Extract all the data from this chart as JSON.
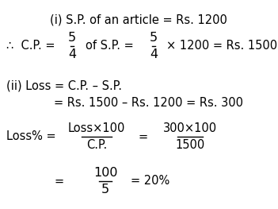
{
  "bg_color": "#ffffff",
  "figsize": [
    3.51,
    2.63
  ],
  "dpi": 100,
  "frac1_num": "5",
  "frac1_den": "4",
  "frac2_num": "5",
  "frac2_den": "4",
  "frac3_num": "Loss×100",
  "frac3_den": "C.P.",
  "frac4_num": "300×100",
  "frac4_den": "1500",
  "frac5_num": "100",
  "frac5_den": "5",
  "text_color": "#000000",
  "line_color": "#000000"
}
